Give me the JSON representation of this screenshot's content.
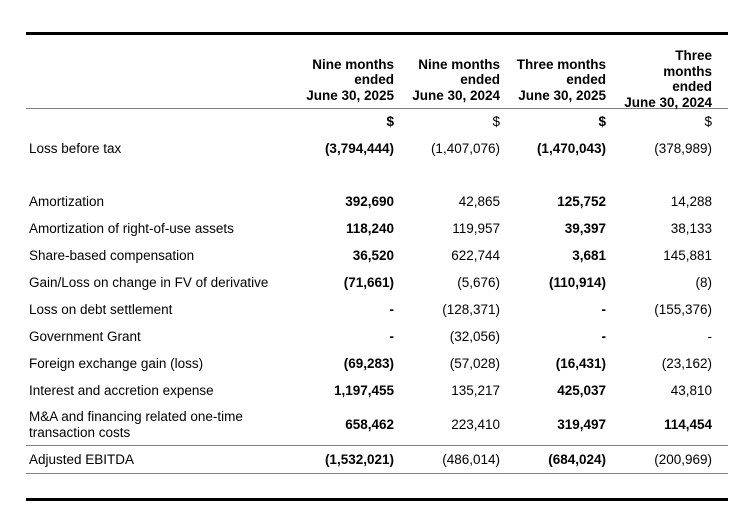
{
  "table": {
    "header": {
      "cols": [
        "Nine months\nended\nJune 30, 2025",
        "Nine months\nended\nJune 30, 2024",
        "Three months\nended\nJune 30, 2025",
        "Three\nmonths\nended\nJune 30, 2024"
      ]
    },
    "currency": [
      "$",
      "$",
      "$",
      "$"
    ],
    "rows": [
      {
        "label": "Loss before tax",
        "values": [
          "(3,794,444)",
          "(1,407,076)",
          "(1,470,043)",
          "(378,989)"
        ]
      },
      {
        "label": "Amortization",
        "values": [
          "392,690",
          "42,865",
          "125,752",
          "14,288"
        ]
      },
      {
        "label": "Amortization of right-of-use assets",
        "values": [
          "118,240",
          "119,957",
          "39,397",
          "38,133"
        ]
      },
      {
        "label": "Share-based compensation",
        "values": [
          "36,520",
          "622,744",
          "3,681",
          "145,881"
        ]
      },
      {
        "label": "Gain/Loss on change in FV of derivative",
        "values": [
          "(71,661)",
          "(5,676)",
          "(110,914)",
          "(8)"
        ]
      },
      {
        "label": "Loss on debt settlement",
        "values": [
          "-",
          "(128,371)",
          "-",
          "(155,376)"
        ]
      },
      {
        "label": "Government Grant",
        "values": [
          "-",
          "(32,056)",
          "-",
          "-"
        ]
      },
      {
        "label": "Foreign exchange gain (loss)",
        "values": [
          "(69,283)",
          "(57,028)",
          "(16,431)",
          "(23,162)"
        ]
      },
      {
        "label": "Interest and accretion expense",
        "values": [
          "1,197,455",
          "135,217",
          "425,037",
          "43,810"
        ]
      },
      {
        "label": "M&A and financing related one-time transaction costs",
        "values": [
          "658,462",
          "223,410",
          "319,497",
          "114,454"
        ]
      }
    ],
    "total": {
      "label": "Adjusted EBITDA",
      "values": [
        "(1,532,021)",
        "(486,014)",
        "(684,024)",
        "(200,969)"
      ]
    },
    "colors": {
      "text": "#000000",
      "thick_rule": "#000000",
      "thin_rule": "#808080",
      "background": "#ffffff"
    }
  }
}
